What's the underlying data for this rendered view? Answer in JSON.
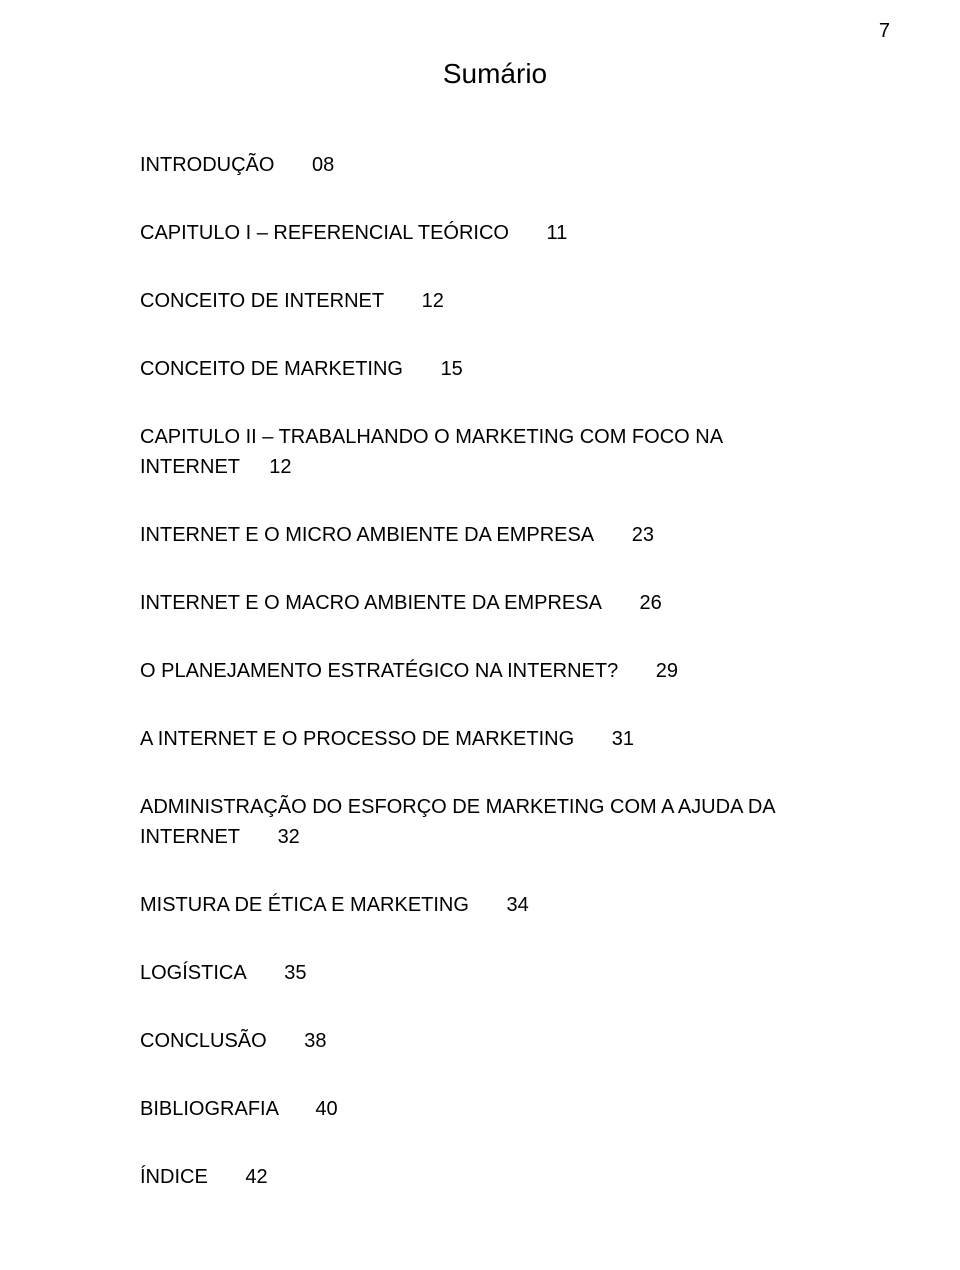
{
  "page_number": "7",
  "title": "Sumário",
  "entries": [
    {
      "label": "INTRODUÇÃO",
      "page": "08",
      "smallcaps": true
    },
    {
      "label": "CAPITULO I – REFERENCIAL TEÓRICO",
      "page": "11",
      "smallcaps": false
    },
    {
      "label": "CONCEITO DE INTERNET",
      "page": "12",
      "smallcaps": true
    },
    {
      "label": "CONCEITO DE MARKETING",
      "page": "15",
      "smallcaps": true
    },
    {
      "label_line1": "CAPITULO II – TRABALHANDO O MARKETING  COM FOCO NA",
      "label_line2": "INTERNET",
      "page": "12",
      "smallcaps": false,
      "twoline": true
    },
    {
      "label": "INTERNET E O MICRO AMBIENTE DA EMPRESA",
      "page": "23",
      "smallcaps": true
    },
    {
      "label": "INTERNET E O MACRO AMBIENTE DA EMPRESA",
      "page": "26",
      "smallcaps": true
    },
    {
      "label": "O PLANEJAMENTO ESTRATÉGICO NA INTERNET?",
      "page": "29",
      "smallcaps": true
    },
    {
      "label": "A INTERNET E O PROCESSO DE MARKETING",
      "page": "31",
      "smallcaps": true
    },
    {
      "label": "ADMINISTRAÇÃO DO ESFORÇO DE MARKETING COM A AJUDA DA INTERNET",
      "page": "32",
      "smallcaps": true,
      "long": true
    },
    {
      "label": "MISTURA DE ÉTICA E MARKETING",
      "page": "34",
      "smallcaps": true
    },
    {
      "label": "LOGÍSTICA",
      "page": "35",
      "smallcaps": true
    },
    {
      "label": "CONCLUSÃO",
      "page": "38",
      "smallcaps": false
    },
    {
      "label": "BIBLIOGRAFIA",
      "page": "40",
      "smallcaps": false
    },
    {
      "label": "ÍNDICE",
      "page": "42",
      "smallcaps": false
    }
  ],
  "colors": {
    "text": "#000000",
    "background": "#ffffff"
  },
  "font": {
    "family": "Arial",
    "title_size_pt": 21,
    "body_size_pt": 15
  }
}
